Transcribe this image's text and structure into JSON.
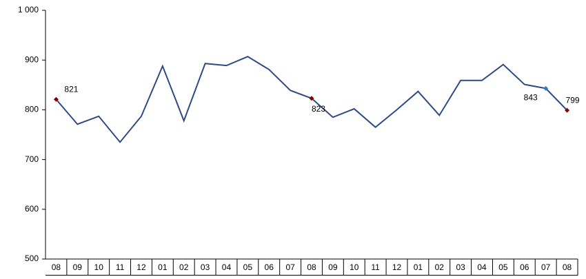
{
  "chart_data": {
    "type": "line",
    "categories": [
      "08",
      "09",
      "10",
      "11",
      "12",
      "01",
      "02",
      "03",
      "04",
      "05",
      "06",
      "07",
      "08",
      "09",
      "10",
      "11",
      "12",
      "01",
      "02",
      "03",
      "04",
      "05",
      "06",
      "07",
      "08"
    ],
    "series": [
      {
        "color": "#2e4a86",
        "values": [
          821,
          771,
          787,
          735,
          787,
          888,
          778,
          893,
          889,
          907,
          881,
          839,
          823,
          785,
          802,
          765,
          800,
          837,
          789,
          859,
          859,
          891,
          851,
          843,
          799
        ],
        "value_labels": [
          "821",
          null,
          null,
          null,
          null,
          null,
          null,
          null,
          null,
          null,
          null,
          null,
          "823",
          null,
          null,
          null,
          null,
          null,
          null,
          null,
          null,
          null,
          null,
          "843",
          "799"
        ],
        "marker_colors": [
          "#8b0000",
          null,
          null,
          null,
          null,
          null,
          null,
          null,
          null,
          null,
          null,
          null,
          "#8b0000",
          null,
          null,
          null,
          null,
          null,
          null,
          null,
          null,
          null,
          null,
          "#3a78c2",
          "#8b0000"
        ]
      }
    ],
    "ylim": [
      500,
      1000
    ],
    "yticks": [
      500,
      600,
      700,
      800,
      900,
      {
        "value": 1000,
        "label": "1 000"
      }
    ],
    "grid": false
  }
}
